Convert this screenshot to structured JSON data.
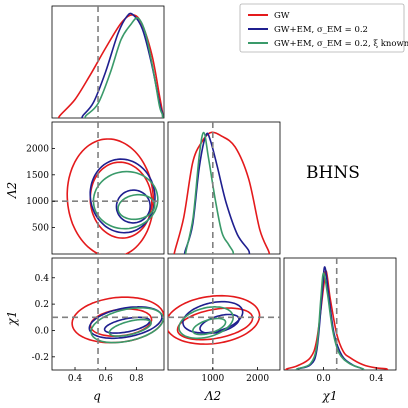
{
  "chart_data": {
    "type": "corner",
    "annotation": "BHNS",
    "colors": {
      "GW": "#e41a1c",
      "GWEM": "#1f1f8f",
      "GWEMxi": "#3a9a6a",
      "truth": "#808080"
    },
    "series": [
      {
        "key": "GW",
        "name": "GW"
      },
      {
        "key": "GWEM",
        "name": "GW+EM, σ_EM = 0.2"
      },
      {
        "key": "GWEMxi",
        "name": "GW+EM, σ_EM = 0.2, ξ known"
      }
    ],
    "parameters": [
      {
        "key": "q",
        "label": "q",
        "range": [
          0.25,
          0.98
        ],
        "ticks": [
          0.4,
          0.6,
          0.8
        ],
        "truth": 0.55
      },
      {
        "key": "L2",
        "label": "Λ2",
        "range": [
          0,
          2500
        ],
        "ticks": [
          500,
          1000,
          1500,
          2000
        ],
        "xticks": [
          1000,
          2000
        ],
        "truth": 1000
      },
      {
        "key": "chi1",
        "label": "χ1",
        "range": [
          -0.3,
          0.55
        ],
        "ticks": [
          -0.2,
          0.0,
          0.2,
          0.4
        ],
        "xticks": [
          0.0,
          0.4
        ],
        "truth": 0.1
      }
    ],
    "marginals": {
      "q": {
        "GW": [
          [
            0.3,
            0.02
          ],
          [
            0.4,
            0.18
          ],
          [
            0.5,
            0.42
          ],
          [
            0.6,
            0.68
          ],
          [
            0.7,
            0.92
          ],
          [
            0.77,
            1.0
          ],
          [
            0.83,
            0.93
          ],
          [
            0.9,
            0.62
          ],
          [
            0.95,
            0.22
          ],
          [
            0.97,
            0.05
          ]
        ],
        "GWEM": [
          [
            0.45,
            0.02
          ],
          [
            0.52,
            0.15
          ],
          [
            0.6,
            0.45
          ],
          [
            0.68,
            0.82
          ],
          [
            0.74,
            0.99
          ],
          [
            0.78,
            1.0
          ],
          [
            0.84,
            0.86
          ],
          [
            0.9,
            0.52
          ],
          [
            0.95,
            0.15
          ],
          [
            0.97,
            0.04
          ]
        ],
        "GWEMxi": [
          [
            0.47,
            0.02
          ],
          [
            0.55,
            0.14
          ],
          [
            0.63,
            0.44
          ],
          [
            0.7,
            0.76
          ],
          [
            0.76,
            0.9
          ],
          [
            0.81,
            0.97
          ],
          [
            0.86,
            0.82
          ],
          [
            0.91,
            0.46
          ],
          [
            0.95,
            0.12
          ],
          [
            0.97,
            0.03
          ]
        ]
      },
      "L2": {
        "GW": [
          [
            150,
            0.02
          ],
          [
            350,
            0.3
          ],
          [
            550,
            0.75
          ],
          [
            750,
            0.92
          ],
          [
            950,
            1.0
          ],
          [
            1200,
            0.97
          ],
          [
            1500,
            0.88
          ],
          [
            1800,
            0.62
          ],
          [
            2050,
            0.2
          ],
          [
            2250,
            0.02
          ]
        ],
        "GWEM": [
          [
            380,
            0.02
          ],
          [
            550,
            0.24
          ],
          [
            700,
            0.72
          ],
          [
            850,
            0.98
          ],
          [
            950,
            0.93
          ],
          [
            1100,
            0.72
          ],
          [
            1300,
            0.42
          ],
          [
            1550,
            0.16
          ],
          [
            1800,
            0.03
          ]
        ],
        "GWEMxi": [
          [
            400,
            0.02
          ],
          [
            560,
            0.3
          ],
          [
            700,
            0.82
          ],
          [
            800,
            1.0
          ],
          [
            900,
            0.8
          ],
          [
            1050,
            0.46
          ],
          [
            1200,
            0.18
          ],
          [
            1350,
            0.08
          ],
          [
            1450,
            0.02
          ]
        ]
      },
      "chi1": {
        "GW": [
          [
            -0.28,
            0.01
          ],
          [
            -0.2,
            0.04
          ],
          [
            -0.1,
            0.12
          ],
          [
            -0.05,
            0.3
          ],
          [
            0.0,
            0.8
          ],
          [
            0.02,
            0.96
          ],
          [
            0.05,
            0.7
          ],
          [
            0.1,
            0.35
          ],
          [
            0.15,
            0.18
          ],
          [
            0.2,
            0.12
          ],
          [
            0.3,
            0.05
          ],
          [
            0.4,
            0.02
          ],
          [
            0.48,
            0.01
          ]
        ],
        "GWEM": [
          [
            -0.2,
            0.01
          ],
          [
            -0.1,
            0.05
          ],
          [
            -0.05,
            0.2
          ],
          [
            -0.01,
            0.75
          ],
          [
            0.01,
            1.0
          ],
          [
            0.04,
            0.72
          ],
          [
            0.08,
            0.35
          ],
          [
            0.14,
            0.14
          ],
          [
            0.22,
            0.05
          ],
          [
            0.3,
            0.01
          ]
        ],
        "GWEMxi": [
          [
            -0.2,
            0.01
          ],
          [
            -0.1,
            0.06
          ],
          [
            -0.05,
            0.24
          ],
          [
            -0.02,
            0.7
          ],
          [
            0.0,
            0.94
          ],
          [
            0.03,
            0.74
          ],
          [
            0.07,
            0.38
          ],
          [
            0.12,
            0.16
          ],
          [
            0.2,
            0.06
          ],
          [
            0.3,
            0.01
          ]
        ]
      }
    },
    "contours": {
      "q_L2": {
        "GW": [
          {
            "c": [
              0.63,
              1060
            ],
            "r": [
              0.28,
              1120
            ],
            "a": -0.08
          },
          {
            "c": [
              0.7,
              1020
            ],
            "r": [
              0.2,
              720
            ],
            "a": -0.1
          }
        ],
        "GWEM": [
          {
            "c": [
              0.71,
              1100
            ],
            "r": [
              0.21,
              700
            ],
            "a": -0.18
          },
          {
            "c": [
              0.78,
              900
            ],
            "r": [
              0.11,
              310
            ],
            "a": -0.22
          }
        ],
        "GWEMxi": [
          {
            "c": [
              0.73,
              1020
            ],
            "r": [
              0.21,
              540
            ],
            "a": -0.12
          },
          {
            "c": [
              0.8,
              890
            ],
            "r": [
              0.12,
              230
            ],
            "a": -0.15
          }
        ]
      },
      "q_chi1": {
        "GW": [
          {
            "c": [
              0.68,
              0.08
            ],
            "r": [
              0.3,
              0.17
            ],
            "a": -0.1
          },
          {
            "c": [
              0.7,
              0.06
            ],
            "r": [
              0.2,
              0.1
            ],
            "a": -0.12
          }
        ],
        "GWEM": [
          {
            "c": [
              0.73,
              0.06
            ],
            "r": [
              0.24,
              0.11
            ],
            "a": -0.18
          },
          {
            "c": [
              0.74,
              0.04
            ],
            "r": [
              0.15,
              0.05
            ],
            "a": -0.2
          }
        ],
        "GWEMxi": [
          {
            "c": [
              0.74,
              0.04
            ],
            "r": [
              0.24,
              0.12
            ],
            "a": -0.22
          },
          {
            "c": [
              0.76,
              0.02
            ],
            "r": [
              0.14,
              0.05
            ],
            "a": -0.25
          }
        ]
      },
      "L2_chi1": {
        "GW": [
          {
            "c": [
              1000,
              0.08
            ],
            "r": [
              1050,
              0.18
            ],
            "a": -0.12
          },
          {
            "c": [
              1050,
              0.05
            ],
            "r": [
              850,
              0.11
            ],
            "a": -0.18
          }
        ],
        "GWEM": [
          {
            "c": [
              1000,
              0.1
            ],
            "r": [
              680,
              0.11
            ],
            "a": -0.22
          },
          {
            "c": [
              1150,
              0.05
            ],
            "r": [
              450,
              0.06
            ],
            "a": -0.28
          }
        ],
        "GWEMxi": [
          {
            "c": [
              850,
              0.06
            ],
            "r": [
              620,
              0.11
            ],
            "a": -0.26
          },
          {
            "c": [
              920,
              0.03
            ],
            "r": [
              380,
              0.05
            ],
            "a": -0.3
          }
        ]
      }
    }
  }
}
